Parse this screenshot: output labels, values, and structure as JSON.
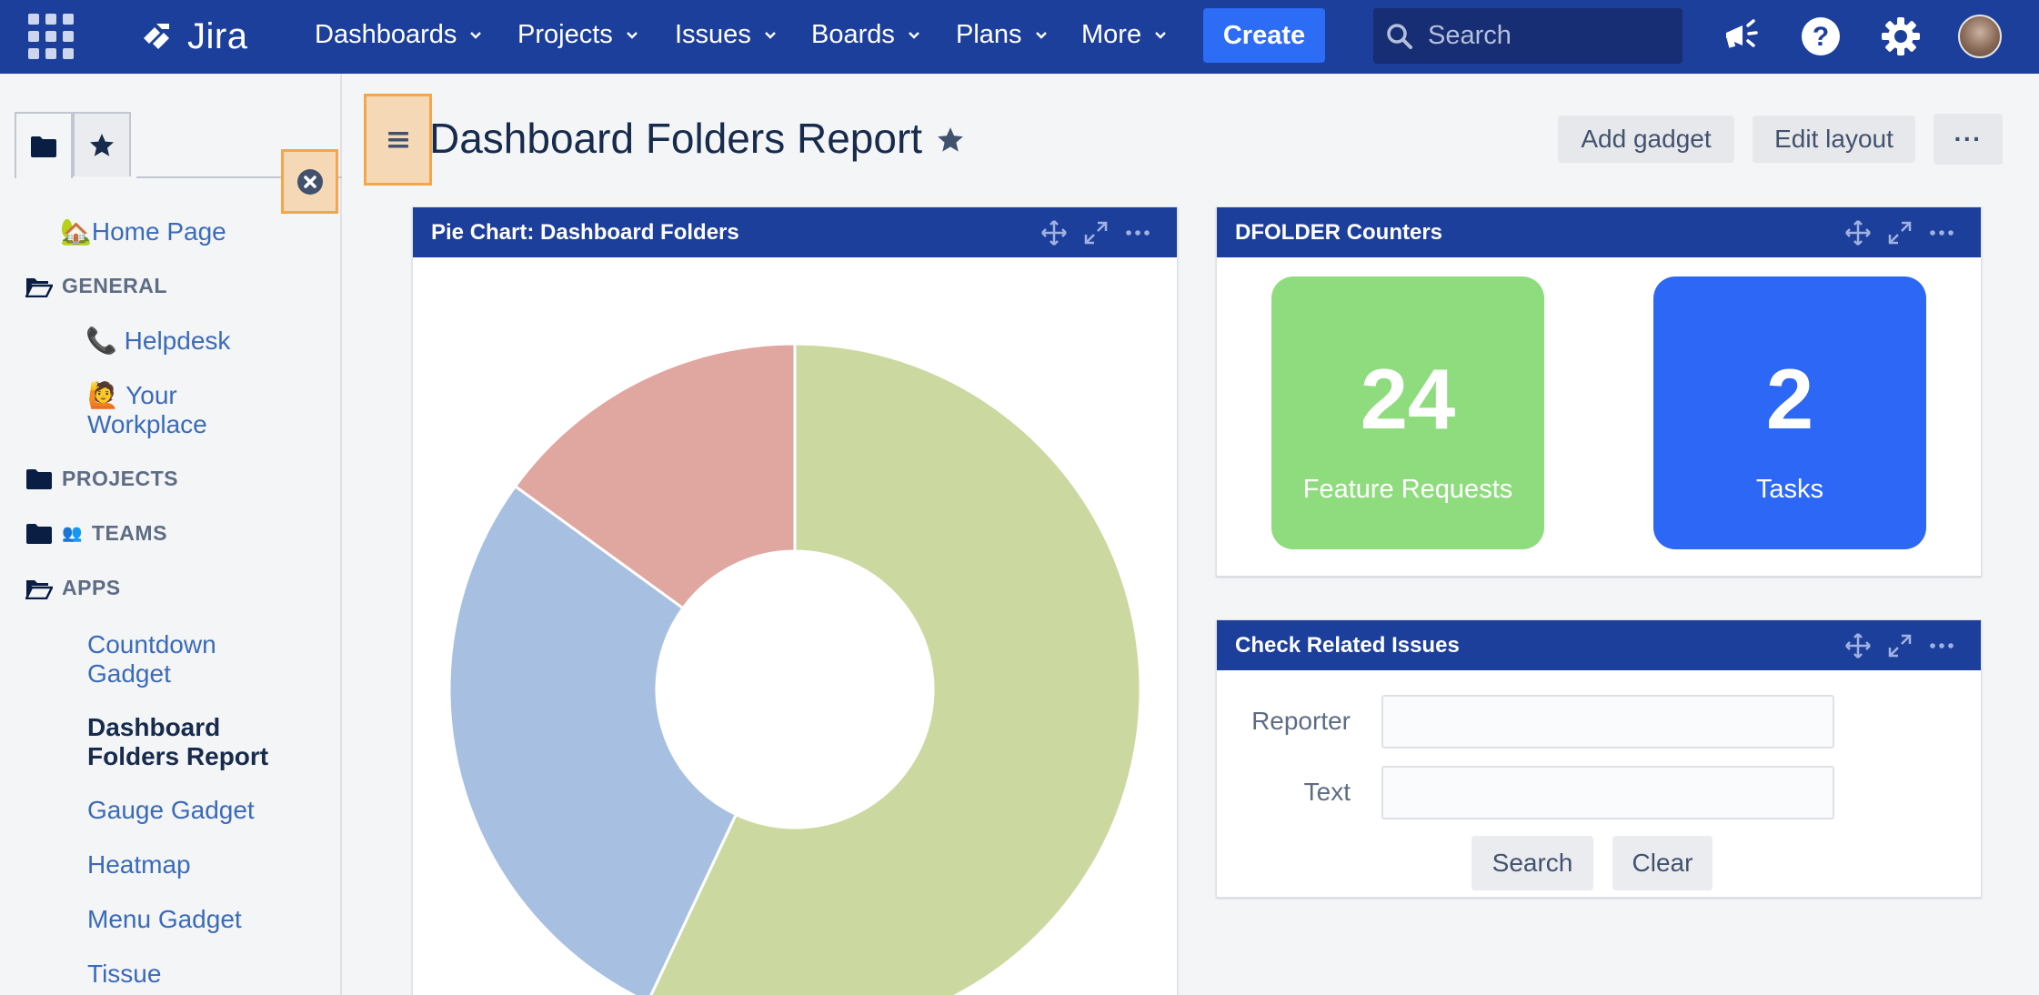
{
  "topnav": {
    "logo_text": "Jira",
    "items": [
      {
        "label": "Dashboards"
      },
      {
        "label": "Projects"
      },
      {
        "label": "Issues"
      },
      {
        "label": "Boards"
      },
      {
        "label": "Plans"
      },
      {
        "label": "More"
      }
    ],
    "create_label": "Create",
    "search_placeholder": "Search",
    "icons": [
      "app-switcher-icon",
      "notifications-megaphone-icon",
      "help-icon",
      "settings-gear-icon",
      "user-avatar"
    ]
  },
  "sidebar": {
    "tabs": [
      "folder-icon",
      "star-icon"
    ],
    "home_link": "Home Page",
    "sections": {
      "general": "GENERAL",
      "projects": "PROJECTS",
      "teams": "TEAMS",
      "apps": "APPS"
    },
    "general_items": [
      {
        "emoji": "📞",
        "label": "Helpdesk"
      },
      {
        "emoji": "🙋",
        "label_line1": "Your",
        "label_line2": "Workplace"
      }
    ],
    "apps_items": {
      "countdown_line1": "Countdown",
      "countdown_line2": "Gadget",
      "current_line1": "Dashboard",
      "current_line2": "Folders Report",
      "gauge": "Gauge Gadget",
      "heatmap": "Heatmap",
      "menu": "Menu Gadget",
      "tissue": "Tissue"
    }
  },
  "header": {
    "title": "Dashboard Folders Report",
    "add_gadget": "Add gadget",
    "edit_layout": "Edit layout",
    "more": "···"
  },
  "gadgets": {
    "pie": {
      "title": "Pie Chart: Dashboard Folders"
    },
    "counters": {
      "title": "DFOLDER Counters",
      "items": [
        {
          "value": "24",
          "label": "Feature Requests",
          "color": "#8fdc7e"
        },
        {
          "value": "2",
          "label": "Tasks",
          "color": "#2d67f5"
        }
      ]
    },
    "related": {
      "title": "Check Related Issues",
      "reporter_label": "Reporter",
      "text_label": "Text",
      "reporter_value": "",
      "text_value": "",
      "search_label": "Search",
      "clear_label": "Clear"
    }
  },
  "chart_data": {
    "type": "pie",
    "donut": true,
    "slices": [
      {
        "value": 57,
        "color": "#cbd9a1"
      },
      {
        "value": 28,
        "color": "#a7bfe1"
      },
      {
        "value": 15,
        "color": "#e0a6a0"
      }
    ]
  },
  "colors": {
    "nav_bg": "#1d3f9c",
    "create_btn": "#2d6cf5",
    "link": "#3b6bb8",
    "highlight_fill": "#f5d9b6",
    "highlight_border": "#f3a64a"
  }
}
